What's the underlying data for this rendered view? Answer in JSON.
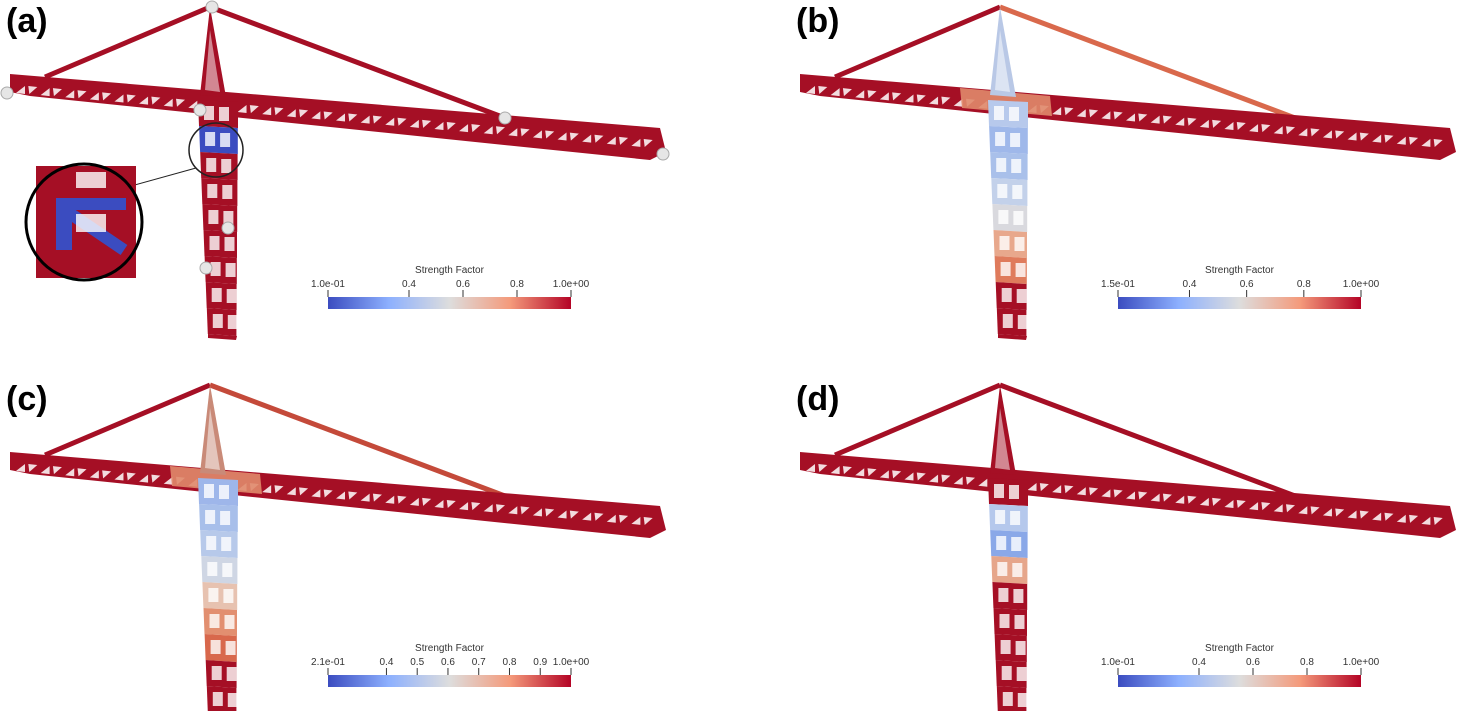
{
  "panels": [
    {
      "label": "(a)",
      "colorbar": {
        "title": "Strength Factor",
        "range": [
          0.1,
          1.0
        ],
        "ticks": [
          {
            "value": 0.1,
            "label": "1.0e-01"
          },
          0.4,
          0.6,
          0.8,
          {
            "value": 1.0,
            "label": "1.0e+00"
          }
        ]
      }
    },
    {
      "label": "(b)",
      "colorbar": {
        "title": "Strength Factor",
        "range": [
          0.15,
          1.0
        ],
        "ticks": [
          {
            "value": 0.15,
            "label": "1.5e-01"
          },
          0.4,
          0.6,
          0.8,
          {
            "value": 1.0,
            "label": "1.0e+00"
          }
        ]
      }
    },
    {
      "label": "(c)",
      "colorbar": {
        "title": "Strength Factor",
        "range": [
          0.21,
          1.0
        ],
        "ticks": [
          {
            "value": 0.21,
            "label": "2.1e-01"
          },
          0.4,
          0.5,
          0.6,
          0.7,
          0.8,
          0.9,
          {
            "value": 1.0,
            "label": "1.0e+00"
          }
        ]
      }
    },
    {
      "label": "(d)",
      "colorbar": {
        "title": "Strength Factor",
        "range": [
          0.1,
          1.0
        ],
        "ticks": [
          {
            "value": 0.1,
            "label": "1.0e-01"
          },
          0.4,
          0.6,
          0.8,
          {
            "value": 1.0,
            "label": "1.0e+00"
          }
        ]
      }
    }
  ]
}
